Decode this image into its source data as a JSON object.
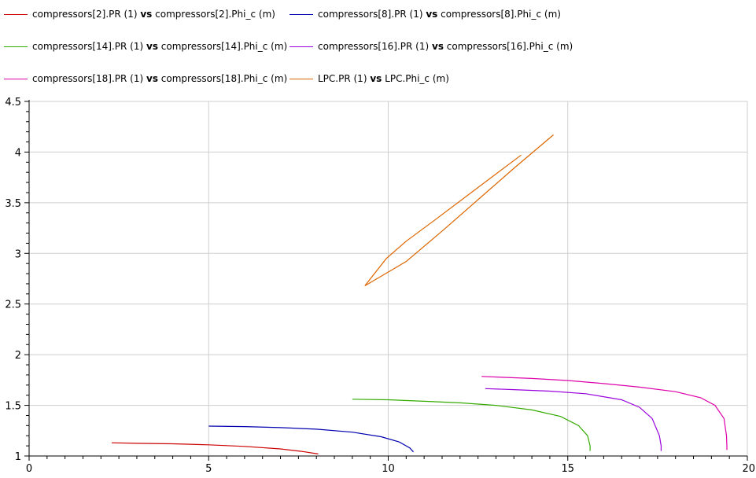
{
  "chart_data": {
    "type": "line",
    "xlim": [
      0,
      20
    ],
    "ylim": [
      1,
      4.5
    ],
    "x_ticks": [
      "0",
      "5",
      "10",
      "15",
      "20"
    ],
    "y_ticks": [
      "1",
      "1.5",
      "2",
      "2.5",
      "3",
      "3.5",
      "4",
      "4.5"
    ],
    "grid": true,
    "legend_position": "top",
    "vs_word": "vs",
    "series": [
      {
        "name_left": "compressors[2].PR (1)",
        "name_right": "compressors[2].Phi_c (m)",
        "color": "#cc0000",
        "points": [
          [
            2.3,
            1.13
          ],
          [
            3.0,
            1.125
          ],
          [
            4.0,
            1.12
          ],
          [
            5.0,
            1.11
          ],
          [
            6.0,
            1.095
          ],
          [
            7.0,
            1.07
          ],
          [
            7.6,
            1.045
          ],
          [
            8.05,
            1.02
          ]
        ]
      },
      {
        "name_left": "compressors[8].PR (1)",
        "name_right": "compressors[8].Phi_c (m)",
        "color": "#0000b0",
        "points": [
          [
            5.0,
            1.295
          ],
          [
            6.0,
            1.29
          ],
          [
            7.0,
            1.28
          ],
          [
            8.0,
            1.265
          ],
          [
            9.0,
            1.235
          ],
          [
            9.8,
            1.19
          ],
          [
            10.3,
            1.14
          ],
          [
            10.6,
            1.08
          ],
          [
            10.7,
            1.04
          ]
        ]
      },
      {
        "name_left": "compressors[14].PR (1)",
        "name_right": "compressors[14].Phi_c (m)",
        "color": "#33aa00",
        "points": [
          [
            9.0,
            1.56
          ],
          [
            10.0,
            1.555
          ],
          [
            11.0,
            1.54
          ],
          [
            12.0,
            1.525
          ],
          [
            13.0,
            1.5
          ],
          [
            14.0,
            1.455
          ],
          [
            14.8,
            1.39
          ],
          [
            15.3,
            1.3
          ],
          [
            15.55,
            1.2
          ],
          [
            15.62,
            1.1
          ],
          [
            15.62,
            1.05
          ]
        ]
      },
      {
        "name_left": "compressors[16].PR (1)",
        "name_right": "compressors[16].Phi_c (m)",
        "color": "#9900dd",
        "points": [
          [
            12.7,
            1.665
          ],
          [
            13.5,
            1.655
          ],
          [
            14.5,
            1.64
          ],
          [
            15.5,
            1.615
          ],
          [
            16.5,
            1.555
          ],
          [
            17.0,
            1.48
          ],
          [
            17.35,
            1.37
          ],
          [
            17.55,
            1.2
          ],
          [
            17.6,
            1.1
          ],
          [
            17.6,
            1.05
          ]
        ]
      },
      {
        "name_left": "compressors[18].PR (1)",
        "name_right": "compressors[18].Phi_c (m)",
        "color": "#dd00aa",
        "points": [
          [
            12.6,
            1.785
          ],
          [
            14.0,
            1.765
          ],
          [
            15.0,
            1.745
          ],
          [
            16.0,
            1.715
          ],
          [
            17.0,
            1.68
          ],
          [
            18.0,
            1.635
          ],
          [
            18.7,
            1.575
          ],
          [
            19.1,
            1.5
          ],
          [
            19.35,
            1.37
          ],
          [
            19.42,
            1.2
          ],
          [
            19.43,
            1.1
          ],
          [
            19.43,
            1.06
          ]
        ]
      },
      {
        "name_left": "LPC.PR (1)",
        "name_right": "LPC.Phi_c (m)",
        "color": "#dd6600",
        "points": [
          [
            13.7,
            3.97
          ],
          [
            12.5,
            3.65
          ],
          [
            11.3,
            3.33
          ],
          [
            10.5,
            3.12
          ],
          [
            9.95,
            2.95
          ],
          [
            9.35,
            2.68
          ],
          [
            10.5,
            2.92
          ],
          [
            11.5,
            3.22
          ],
          [
            12.5,
            3.53
          ],
          [
            13.5,
            3.84
          ],
          [
            14.6,
            4.17
          ]
        ]
      }
    ]
  }
}
